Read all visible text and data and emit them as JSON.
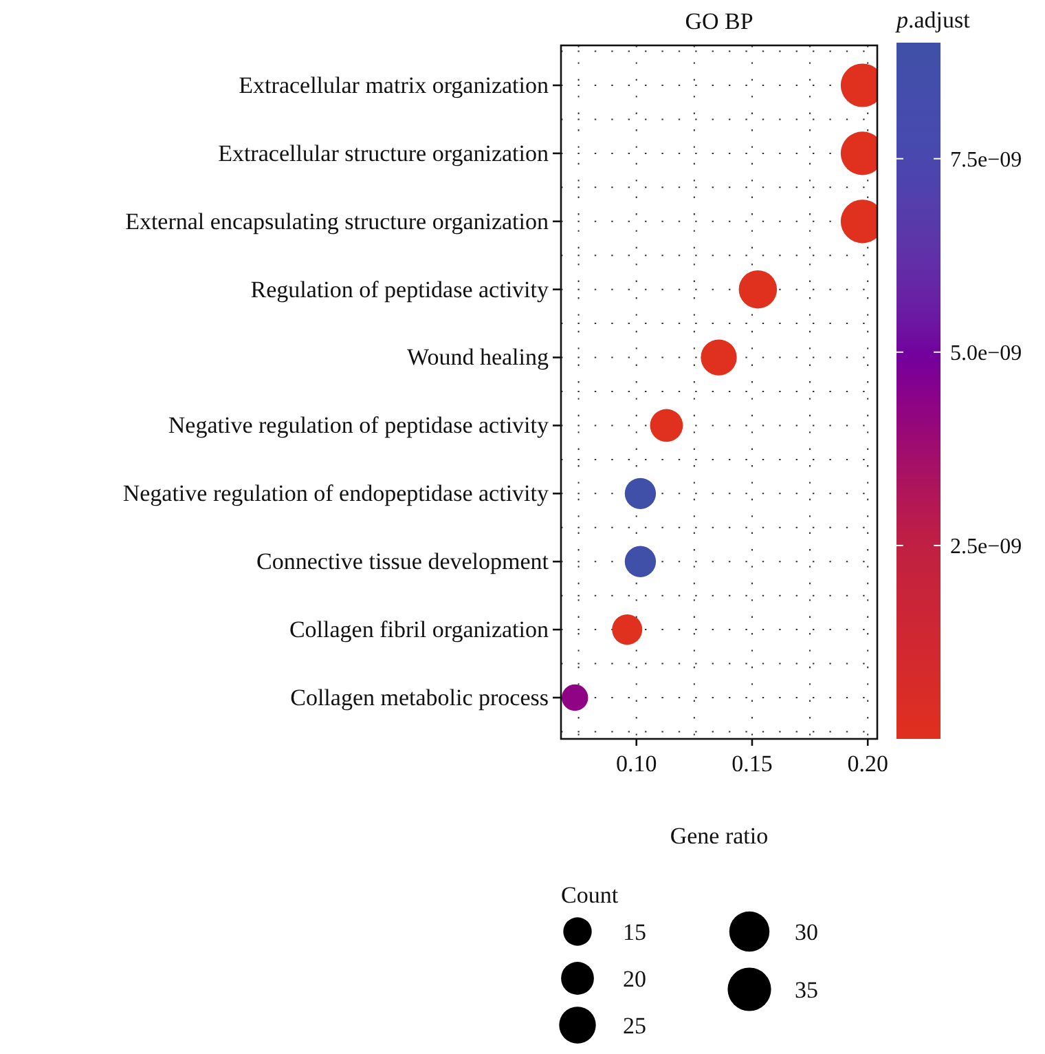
{
  "chart_data": {
    "type": "bubble",
    "title": "GO BP",
    "xlabel": "Gene ratio",
    "clabel": "p.adjust",
    "legend_title": "Count",
    "categories": [
      "Extracellular matrix organization",
      "Extracellular structure organization",
      "External encapsulating structure organization",
      "Regulation of peptidase activity",
      "Wound healing",
      "Negative regulation of peptidase activity",
      "Negative regulation of endopeptidase activity",
      "Connective tissue development",
      "Collagen fibril organization",
      "Collagen metabolic process"
    ],
    "values": [
      0.1977,
      0.1977,
      0.1977,
      0.1525,
      0.1356,
      0.113,
      0.1017,
      0.1017,
      0.096,
      0.0734
    ],
    "sizes": [
      35,
      35,
      35,
      27,
      24,
      20,
      18,
      18,
      17,
      13
    ],
    "size_legend": [
      15,
      20,
      25,
      30,
      35
    ],
    "cvalues": [
      0,
      0,
      0,
      0,
      0,
      0,
      9e-09,
      9e-09,
      0,
      4.3e-09
    ],
    "orientation": "horizontal",
    "xlim": [
      0.0674,
      0.2041
    ],
    "xticks": [
      {
        "value": 0.1,
        "label": "0.10"
      },
      {
        "value": 0.15,
        "label": "0.15"
      },
      {
        "value": 0.2,
        "label": "0.20"
      }
    ],
    "clim": [
      0,
      9e-09
    ],
    "cticks": [
      {
        "value": 2.5e-09,
        "label": "2.5e−09"
      },
      {
        "value": 5e-09,
        "label": "5.0e−09"
      },
      {
        "value": 7.5e-09,
        "label": "7.5e−09"
      }
    ],
    "grid": true
  }
}
